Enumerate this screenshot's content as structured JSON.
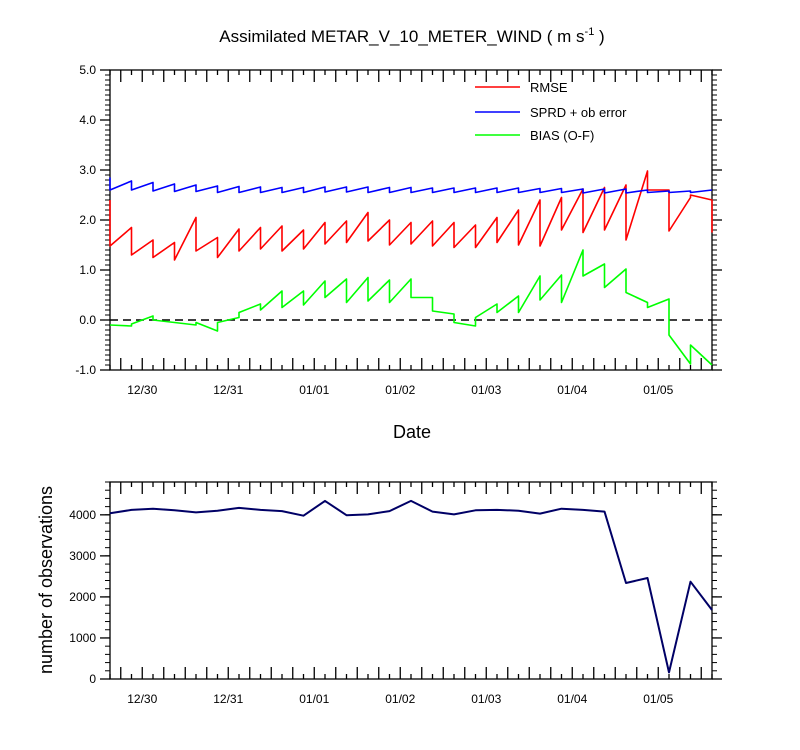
{
  "chart_data": [
    {
      "type": "line",
      "title": "Assimilated METAR_V_10_METER_WIND ( m s",
      "title_exp": "-1",
      "title_end": " )",
      "xlabel": "Date",
      "ylabel": "",
      "ylim": [
        -1.0,
        5.0
      ],
      "xlim": [
        0,
        28
      ],
      "yticks": [
        -1.0,
        0.0,
        1.0,
        2.0,
        3.0,
        4.0,
        5.0
      ],
      "ytick_labels": [
        "-1.0",
        "0.0",
        "1.0",
        "2.0",
        "3.0",
        "4.0",
        "5.0"
      ],
      "xtick_labels": [
        "12/30",
        "12/31",
        "01/01",
        "01/02",
        "01/03",
        "01/04",
        "01/05"
      ],
      "xtick_positions": [
        1.5,
        5.5,
        9.5,
        13.5,
        17.5,
        21.5,
        25.5
      ],
      "zero_line": true,
      "legend_position": "top-right",
      "series": [
        {
          "name": "RMSE",
          "color": "#ff0000",
          "x": [
            0,
            0,
            1,
            1,
            2,
            2,
            3,
            3,
            4,
            4,
            5,
            5,
            6,
            6,
            7,
            7,
            8,
            8,
            9,
            9,
            10,
            10,
            11,
            11,
            12,
            12,
            13,
            13,
            14,
            14,
            15,
            15,
            16,
            16,
            17,
            17,
            18,
            18,
            19,
            19,
            20,
            20,
            21,
            21,
            22,
            22,
            23,
            23,
            24,
            24,
            25,
            25,
            26,
            26,
            27,
            27,
            28,
            28
          ],
          "values": [
            2.4,
            1.48,
            1.85,
            1.3,
            1.6,
            1.25,
            1.55,
            1.2,
            2.05,
            1.38,
            1.65,
            1.25,
            1.82,
            1.38,
            1.85,
            1.42,
            1.88,
            1.38,
            1.8,
            1.42,
            1.95,
            1.52,
            1.98,
            1.55,
            2.15,
            1.58,
            2.0,
            1.5,
            1.95,
            1.52,
            1.98,
            1.48,
            1.95,
            1.45,
            1.9,
            1.45,
            2.05,
            1.55,
            2.2,
            1.5,
            2.4,
            1.48,
            2.45,
            1.8,
            2.62,
            1.75,
            2.65,
            1.8,
            2.7,
            1.6,
            2.98,
            2.6,
            2.6,
            1.78,
            2.45,
            2.5,
            2.4,
            1.75
          ]
        },
        {
          "name": "SPRD + ob error",
          "color": "#0000ff",
          "x": [
            0,
            0,
            1,
            1,
            2,
            2,
            3,
            3,
            4,
            4,
            5,
            5,
            6,
            6,
            7,
            7,
            8,
            8,
            9,
            9,
            10,
            10,
            11,
            11,
            12,
            12,
            13,
            13,
            14,
            14,
            15,
            15,
            16,
            16,
            17,
            17,
            18,
            18,
            19,
            19,
            20,
            20,
            21,
            21,
            22,
            22,
            23,
            23,
            24,
            24,
            25,
            25,
            26,
            26,
            27,
            27,
            28,
            28
          ],
          "values": [
            2.85,
            2.6,
            2.78,
            2.6,
            2.75,
            2.58,
            2.72,
            2.57,
            2.7,
            2.57,
            2.68,
            2.55,
            2.67,
            2.55,
            2.66,
            2.55,
            2.65,
            2.55,
            2.65,
            2.55,
            2.66,
            2.56,
            2.66,
            2.56,
            2.66,
            2.55,
            2.65,
            2.55,
            2.65,
            2.55,
            2.64,
            2.55,
            2.64,
            2.55,
            2.64,
            2.55,
            2.64,
            2.55,
            2.64,
            2.55,
            2.63,
            2.55,
            2.63,
            2.55,
            2.62,
            2.54,
            2.62,
            2.54,
            2.62,
            2.54,
            2.6,
            2.55,
            2.58,
            2.55,
            2.58,
            2.55,
            2.6,
            2.6
          ]
        },
        {
          "name": "BIAS (O-F)",
          "color": "#00ff00",
          "x": [
            0,
            0,
            1,
            1,
            2,
            2,
            3,
            3,
            4,
            4,
            5,
            5,
            6,
            6,
            7,
            7,
            8,
            8,
            9,
            9,
            10,
            10,
            11,
            11,
            12,
            12,
            13,
            13,
            14,
            14,
            15,
            15,
            16,
            16,
            17,
            17,
            18,
            18,
            19,
            19,
            20,
            20,
            21,
            21,
            22,
            22,
            23,
            23,
            24,
            24,
            25,
            25,
            26,
            26,
            27,
            27,
            28,
            28
          ],
          "values": [
            -0.1,
            -0.1,
            -0.12,
            -0.08,
            0.08,
            0.0,
            -0.05,
            -0.05,
            -0.1,
            -0.05,
            -0.22,
            -0.05,
            0.05,
            0.15,
            0.32,
            0.2,
            0.58,
            0.25,
            0.58,
            0.3,
            0.78,
            0.45,
            0.82,
            0.35,
            0.85,
            0.38,
            0.8,
            0.35,
            0.82,
            0.45,
            0.45,
            0.18,
            0.12,
            -0.05,
            -0.12,
            0.05,
            0.32,
            0.15,
            0.48,
            0.15,
            0.88,
            0.4,
            0.9,
            0.35,
            1.4,
            0.88,
            1.12,
            0.65,
            1.02,
            0.55,
            0.35,
            0.25,
            0.42,
            -0.3,
            -0.88,
            -0.5,
            -0.9,
            -0.9
          ]
        }
      ]
    },
    {
      "type": "line",
      "title": "",
      "xlabel": "",
      "ylabel": "number of observations",
      "ylim": [
        0,
        4800
      ],
      "xlim": [
        0,
        28
      ],
      "yticks": [
        0,
        1000,
        2000,
        3000,
        4000
      ],
      "ytick_labels": [
        "0",
        "1000",
        "2000",
        "3000",
        "4000"
      ],
      "xtick_labels": [
        "12/30",
        "12/31",
        "01/01",
        "01/02",
        "01/03",
        "01/04",
        "01/05"
      ],
      "xtick_positions": [
        1.5,
        5.5,
        9.5,
        13.5,
        17.5,
        21.5,
        25.5
      ],
      "series": [
        {
          "name": "number of observations",
          "color": "#000066",
          "x": [
            0,
            1,
            2,
            3,
            4,
            5,
            6,
            7,
            8,
            9,
            10,
            11,
            12,
            13,
            14,
            15,
            16,
            17,
            18,
            19,
            20,
            21,
            22,
            23,
            24,
            25,
            26,
            27,
            28
          ],
          "values": [
            4040,
            4120,
            4150,
            4110,
            4060,
            4100,
            4170,
            4120,
            4090,
            3980,
            4340,
            3990,
            4010,
            4090,
            4340,
            4080,
            4010,
            4110,
            4120,
            4100,
            4030,
            4150,
            4120,
            4080,
            2340,
            2460,
            160,
            2370,
            1680
          ]
        }
      ]
    }
  ]
}
